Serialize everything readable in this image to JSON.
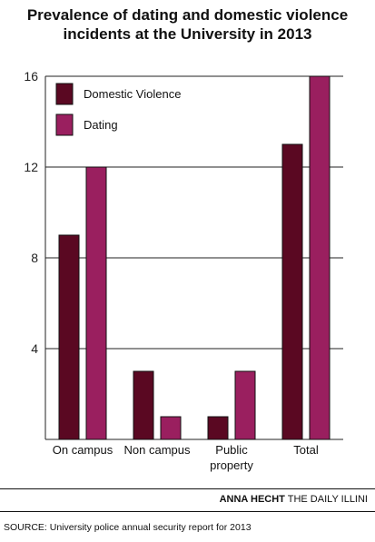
{
  "title_line1": "Prevalence of dating and domestic violence",
  "title_line2": "incidents at the University in 2013",
  "credit_name": "ANNA HECHT",
  "credit_org": "THE DAILY ILLINI",
  "source": "SOURCE: University police annual security report for 2013",
  "colors": {
    "domestic": "#5a0822",
    "dating": "#9a1f5f",
    "grid": "#222222"
  },
  "chart_data": {
    "type": "bar",
    "categories": [
      [
        "On campus"
      ],
      [
        "Non campus"
      ],
      [
        "Public",
        "property"
      ],
      [
        "Total"
      ]
    ],
    "series": [
      {
        "name": "Domestic Violence",
        "values": [
          9,
          3,
          1,
          13
        ]
      },
      {
        "name": "Dating",
        "values": [
          12,
          1,
          3,
          16
        ]
      }
    ],
    "ylim": [
      0,
      16
    ],
    "yticks": [
      4,
      8,
      12,
      16
    ],
    "grid": true,
    "legend": "top-left"
  }
}
